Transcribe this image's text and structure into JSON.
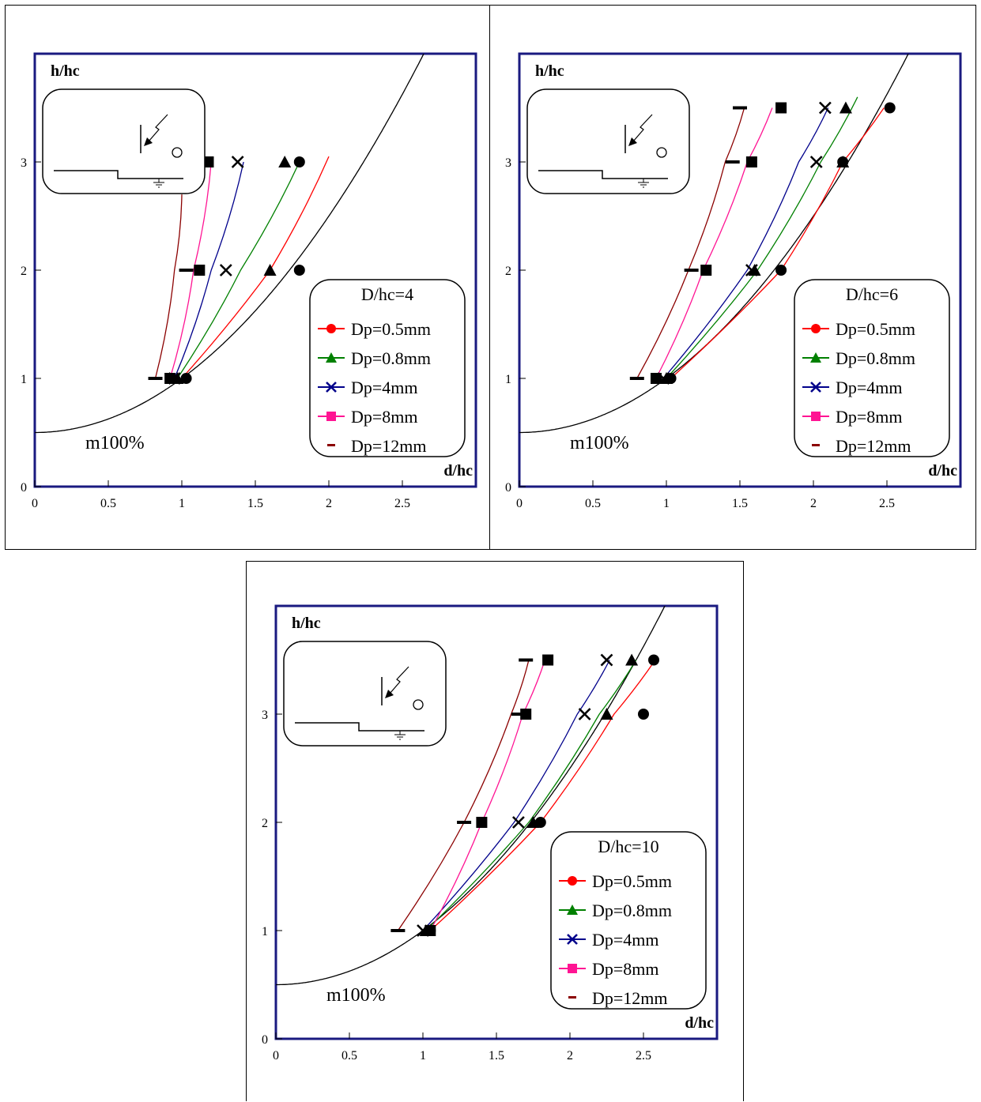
{
  "chart_data": [
    {
      "type": "scatter",
      "xlabel": "d/hc",
      "ylabel": "h/hc",
      "xlim": [
        0,
        3
      ],
      "ylim": [
        0,
        4
      ],
      "x_ticks": [
        "0",
        "0.5",
        "1",
        "1.5",
        "2",
        "2.5"
      ],
      "y_ticks": [
        "0",
        "1",
        "2",
        "3"
      ],
      "annotation": "m100%",
      "legend_title": "D/hc=4",
      "legend_position": "bottom-right",
      "reference_curve": {
        "formula": "h = 0.5 + 0.5*d^2",
        "color": "#000000"
      },
      "series": [
        {
          "name": "Dp=0.5mm",
          "color": "#ff0000",
          "marker": "circle",
          "points": [
            [
              1.03,
              1
            ],
            [
              1.8,
              2
            ],
            [
              1.8,
              3
            ]
          ],
          "fit": [
            [
              1.0,
              1
            ],
            [
              1.6,
              2
            ],
            [
              2.0,
              3.05
            ]
          ]
        },
        {
          "name": "Dp=0.8mm",
          "color": "#008000",
          "marker": "triangle",
          "points": [
            [
              0.97,
              1
            ],
            [
              1.6,
              2
            ],
            [
              1.7,
              3
            ]
          ],
          "fit": [
            [
              0.97,
              1
            ],
            [
              1.4,
              2
            ],
            [
              1.8,
              3.0
            ]
          ]
        },
        {
          "name": "Dp=4mm",
          "color": "#00008b",
          "marker": "cross",
          "points": [
            [
              0.95,
              1
            ],
            [
              1.3,
              2
            ],
            [
              1.38,
              3
            ]
          ],
          "fit": [
            [
              0.95,
              1
            ],
            [
              1.2,
              2
            ],
            [
              1.42,
              3.0
            ]
          ]
        },
        {
          "name": "Dp=8mm",
          "color": "#ff1493",
          "marker": "square",
          "points": [
            [
              0.92,
              1
            ],
            [
              1.12,
              2
            ],
            [
              1.18,
              3
            ]
          ],
          "fit": [
            [
              0.92,
              1
            ],
            [
              1.08,
              2
            ],
            [
              1.2,
              3.0
            ]
          ]
        },
        {
          "name": "Dp=12mm",
          "color": "#8b0000",
          "marker": "dash",
          "points": [
            [
              0.82,
              1
            ],
            [
              1.03,
              2
            ],
            [
              1.15,
              3
            ]
          ],
          "fit": [
            [
              0.82,
              1
            ],
            [
              0.95,
              2
            ],
            [
              1.0,
              2.7
            ]
          ]
        }
      ]
    },
    {
      "type": "scatter",
      "xlabel": "d/hc",
      "ylabel": "h/hc",
      "xlim": [
        0,
        3
      ],
      "ylim": [
        0,
        4
      ],
      "x_ticks": [
        "0",
        "0.5",
        "1",
        "1.5",
        "2",
        "2.5"
      ],
      "y_ticks": [
        "0",
        "1",
        "2",
        "3"
      ],
      "annotation": "m100%",
      "legend_title": "D/hc=6",
      "legend_position": "bottom-right",
      "reference_curve": {
        "formula": "h = 0.5 + 0.5*d^2",
        "color": "#000000"
      },
      "series": [
        {
          "name": "Dp=0.5mm",
          "color": "#ff0000",
          "marker": "circle",
          "points": [
            [
              1.03,
              1
            ],
            [
              1.78,
              2
            ],
            [
              2.2,
              3
            ],
            [
              2.52,
              3.5
            ]
          ],
          "fit": [
            [
              1.03,
              1
            ],
            [
              1.78,
              2
            ],
            [
              2.2,
              3.0
            ],
            [
              2.48,
              3.5
            ]
          ]
        },
        {
          "name": "Dp=0.8mm",
          "color": "#008000",
          "marker": "triangle",
          "points": [
            [
              1.0,
              1
            ],
            [
              1.6,
              2
            ],
            [
              2.2,
              3
            ],
            [
              2.22,
              3.5
            ]
          ],
          "fit": [
            [
              1.0,
              1
            ],
            [
              1.62,
              2
            ],
            [
              2.05,
              3.0
            ],
            [
              2.3,
              3.6
            ]
          ]
        },
        {
          "name": "Dp=4mm",
          "color": "#00008b",
          "marker": "cross",
          "points": [
            [
              0.98,
              1
            ],
            [
              1.58,
              2
            ],
            [
              2.02,
              3
            ],
            [
              2.08,
              3.5
            ]
          ],
          "fit": [
            [
              0.98,
              1
            ],
            [
              1.55,
              2
            ],
            [
              1.9,
              3.0
            ],
            [
              2.1,
              3.5
            ]
          ]
        },
        {
          "name": "Dp=8mm",
          "color": "#ff1493",
          "marker": "square",
          "points": [
            [
              0.93,
              1
            ],
            [
              1.27,
              2
            ],
            [
              1.58,
              3
            ],
            [
              1.78,
              3.5
            ]
          ],
          "fit": [
            [
              0.93,
              1
            ],
            [
              1.25,
              2
            ],
            [
              1.55,
              3.0
            ],
            [
              1.72,
              3.5
            ]
          ]
        },
        {
          "name": "Dp=12mm",
          "color": "#8b0000",
          "marker": "dash",
          "points": [
            [
              0.8,
              1
            ],
            [
              1.17,
              2
            ],
            [
              1.45,
              3
            ],
            [
              1.5,
              3.5
            ]
          ],
          "fit": [
            [
              0.8,
              1
            ],
            [
              1.15,
              2
            ],
            [
              1.4,
              3.0
            ],
            [
              1.53,
              3.5
            ]
          ]
        }
      ]
    },
    {
      "type": "scatter",
      "xlabel": "d/hc",
      "ylabel": "h/hc",
      "xlim": [
        0,
        3
      ],
      "ylim": [
        0,
        4
      ],
      "x_ticks": [
        "0",
        "0.5",
        "1",
        "1.5",
        "2",
        "2.5"
      ],
      "y_ticks": [
        "0",
        "1",
        "2",
        "3"
      ],
      "annotation": "m100%",
      "legend_title": "D/hc=10",
      "legend_position": "bottom-right",
      "reference_curve": {
        "formula": "h = 0.5 + 0.5*d^2",
        "color": "#000000"
      },
      "series": [
        {
          "name": "Dp=0.5mm",
          "color": "#ff0000",
          "marker": "circle",
          "points": [
            [
              1.05,
              1
            ],
            [
              1.8,
              2
            ],
            [
              2.5,
              3
            ],
            [
              2.57,
              3.5
            ]
          ],
          "fit": [
            [
              1.05,
              1
            ],
            [
              1.8,
              2
            ],
            [
              2.3,
              3.0
            ],
            [
              2.58,
              3.5
            ]
          ]
        },
        {
          "name": "Dp=0.8mm",
          "color": "#008000",
          "marker": "triangle",
          "points": [
            [
              1.02,
              1
            ],
            [
              1.75,
              2
            ],
            [
              2.25,
              3
            ],
            [
              2.42,
              3.5
            ]
          ],
          "fit": [
            [
              1.02,
              1
            ],
            [
              1.72,
              2
            ],
            [
              2.2,
              3.0
            ],
            [
              2.45,
              3.5
            ]
          ]
        },
        {
          "name": "Dp=4mm",
          "color": "#00008b",
          "marker": "cross",
          "points": [
            [
              1.0,
              1
            ],
            [
              1.65,
              2
            ],
            [
              2.1,
              3
            ],
            [
              2.25,
              3.5
            ]
          ],
          "fit": [
            [
              1.0,
              1
            ],
            [
              1.62,
              2
            ],
            [
              2.05,
              3.0
            ],
            [
              2.27,
              3.5
            ]
          ]
        },
        {
          "name": "Dp=8mm",
          "color": "#ff1493",
          "marker": "square",
          "points": [
            [
              1.05,
              1
            ],
            [
              1.4,
              2
            ],
            [
              1.7,
              3
            ],
            [
              1.85,
              3.5
            ]
          ],
          "fit": [
            [
              1.05,
              1
            ],
            [
              1.4,
              2
            ],
            [
              1.68,
              3.0
            ],
            [
              1.83,
              3.5
            ]
          ]
        },
        {
          "name": "Dp=12mm",
          "color": "#8b0000",
          "marker": "dash",
          "points": [
            [
              0.83,
              1
            ],
            [
              1.28,
              2
            ],
            [
              1.65,
              3
            ],
            [
              1.7,
              3.5
            ]
          ],
          "fit": [
            [
              0.83,
              1
            ],
            [
              1.28,
              2
            ],
            [
              1.6,
              3.0
            ],
            [
              1.72,
              3.5
            ]
          ]
        }
      ]
    }
  ]
}
